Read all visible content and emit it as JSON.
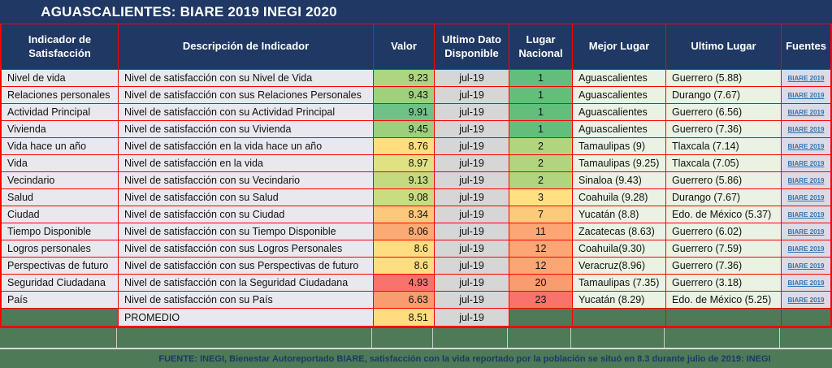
{
  "title": "AGUASCALIENTES: BIARE 2019 INEGI 2020",
  "colors": {
    "navy": "#1f3864",
    "border_red": "#fe0000",
    "dark_green": "#4e7a57",
    "row_bg": "#e9e8ee",
    "date_bg": "#d6d6d6",
    "place_bg": "#eaf2e3",
    "source_bg": "#dcdbe5",
    "link_blue": "#2e75b6"
  },
  "header": {
    "indicator": "Indicador de Satisfacción",
    "description": "Descripción de Indicador",
    "value": "Valor",
    "last_data": "Ultimo Dato Disponible",
    "national_rank": "Lugar Nacional",
    "best_place": "Mejor Lugar",
    "last_place": "Ultimo Lugar",
    "sources": "Fuentes"
  },
  "rows": [
    {
      "indicator": "Nivel de vida",
      "description": "Nivel de satisfacción con su Nivel de Vida",
      "value": "9.23",
      "value_color": "#aed580",
      "last_data": "jul-19",
      "rank": "1",
      "rank_color": "#63be7b",
      "best_place": "Aguascalientes",
      "last_place": "Guerrero (5.88)",
      "source": "BIARE 2019"
    },
    {
      "indicator": "Relaciones personales",
      "description": "Nivel de satisfacción con sus Relaciones Personales",
      "value": "9.43",
      "value_color": "#9fd07c",
      "last_data": "jul-19",
      "rank": "1",
      "rank_color": "#63be7b",
      "best_place": "Aguascalientes",
      "last_place": "Durango (7.67)",
      "source": "BIARE 2019"
    },
    {
      "indicator": "Actividad Principal",
      "description": "Nivel de satisfacción con su Actividad Principal",
      "value": "9.91",
      "value_color": "#6fc287",
      "last_data": "jul-19",
      "rank": "1",
      "rank_color": "#63be7b",
      "best_place": "Aguascalientes",
      "last_place": "Guerrero (6.56)",
      "source": "BIARE 2019"
    },
    {
      "indicator": "Vivienda",
      "description": "Nivel de satisfacción con su Vivienda",
      "value": "9.45",
      "value_color": "#9dcf7c",
      "last_data": "jul-19",
      "rank": "1",
      "rank_color": "#63be7b",
      "best_place": "Aguascalientes",
      "last_place": "Guerrero (7.36)",
      "source": "BIARE 2019"
    },
    {
      "indicator": "Vida hace un año",
      "description": "Nivel de satisfacción en la vida hace un año",
      "value": "8.76",
      "value_color": "#fede7f",
      "last_data": "jul-19",
      "rank": "2",
      "rank_color": "#b1d57e",
      "best_place": "Tamaulipas (9)",
      "last_place": "Tlaxcala (7.14)",
      "source": "BIARE 2019"
    },
    {
      "indicator": "Vida",
      "description": "Nivel de satisfacción en la vida",
      "value": "8.97",
      "value_color": "#e0e182",
      "last_data": "jul-19",
      "rank": "2",
      "rank_color": "#b1d57e",
      "best_place": "Tamaulipas (9.25)",
      "last_place": "Tlaxcala (7.05)",
      "source": "BIARE 2019"
    },
    {
      "indicator": "Vecindario",
      "description": "Nivel de satisfacción con su Vecindario",
      "value": "9.13",
      "value_color": "#c3da80",
      "last_data": "jul-19",
      "rank": "2",
      "rank_color": "#b1d57e",
      "best_place": "Sinaloa (9.43)",
      "last_place": "Guerrero (5.86)",
      "source": "BIARE 2019"
    },
    {
      "indicator": "Salud",
      "description": "Nivel de satisfacción con su Salud",
      "value": "9.08",
      "value_color": "#c9dc80",
      "last_data": "jul-19",
      "rank": "3",
      "rank_color": "#ffe182",
      "best_place": "Coahuila (9.28)",
      "last_place": "Durango (7.67)",
      "source": "BIARE 2019"
    },
    {
      "indicator": "Ciudad",
      "description": "Nivel de satisfacción con su Ciudad",
      "value": "8.34",
      "value_color": "#fec77b",
      "last_data": "jul-19",
      "rank": "7",
      "rank_color": "#fec97b",
      "best_place": "Yucatán (8.8)",
      "last_place": "Edo. de México (5.37)",
      "source": "BIARE 2019"
    },
    {
      "indicator": "Tiempo Disponible",
      "description": "Nivel de satisfacción con su Tiempo Disponible",
      "value": "8.06",
      "value_color": "#fcaa73",
      "last_data": "jul-19",
      "rank": "11",
      "rank_color": "#fba674",
      "best_place": "Zacatecas (8.63)",
      "last_place": "Guerrero (6.02)",
      "source": "BIARE 2019"
    },
    {
      "indicator": "Logros personales",
      "description": "Nivel de satisfacción con sus Logros Personales",
      "value": "8.6",
      "value_color": "#ffdd80",
      "last_data": "jul-19",
      "rank": "12",
      "rank_color": "#fba674",
      "best_place": "Coahuila(9.30)",
      "last_place": "Guerrero (7.59)",
      "source": "BIARE 2019"
    },
    {
      "indicator": "Perspectivas de futuro",
      "description": "Nivel de satisfacción con sus Perspectivas de futuro",
      "value": "8.6",
      "value_color": "#ffdd80",
      "last_data": "jul-19",
      "rank": "12",
      "rank_color": "#fba674",
      "best_place": "Veracruz(8.96)",
      "last_place": "Guerrero (7.36)",
      "source": "BIARE 2019"
    },
    {
      "indicator": "Seguridad Ciudadana",
      "description": "Nivel de satisfacción con la Seguridad Ciudadana",
      "value": "4.93",
      "value_color": "#f9726c",
      "last_data": "jul-19",
      "rank": "20",
      "rank_color": "#fb9b70",
      "best_place": "Tamaulipas (7.35)",
      "last_place": "Guerrero (3.18)",
      "source": "BIARE 2019"
    },
    {
      "indicator": "País",
      "description": "Nivel de satisfacción con su País",
      "value": "6.63",
      "value_color": "#fb9c6f",
      "last_data": "jul-19",
      "rank": "23",
      "rank_color": "#f9726c",
      "best_place": "Yucatán (8.29)",
      "last_place": "Edo. de México (5.25)",
      "source": "BIARE 2019"
    }
  ],
  "summary_row": {
    "description": "PROMEDIO",
    "value": "8.51",
    "value_color": "#ffdc7f",
    "last_data": "jul-19"
  },
  "footer": {
    "text": "FUENTE: INEGI, Bienestar Autoreportado BIARE, satisfacción con la vida reportado por la población se situó en 8.3 durante julio de 2019: INEGI"
  },
  "chart_data": {
    "type": "table",
    "title": "AGUASCALIENTES: BIARE 2019 INEGI 2020",
    "columns": [
      "Indicador de Satisfacción",
      "Descripción de Indicador",
      "Valor",
      "Ultimo Dato Disponible",
      "Lugar Nacional",
      "Mejor Lugar",
      "Ultimo Lugar",
      "Fuentes"
    ],
    "rows": [
      [
        "Nivel de vida",
        "Nivel de satisfacción con su Nivel de Vida",
        9.23,
        "jul-19",
        1,
        "Aguascalientes",
        "Guerrero (5.88)",
        "BIARE 2019"
      ],
      [
        "Relaciones personales",
        "Nivel de satisfacción con sus Relaciones Personales",
        9.43,
        "jul-19",
        1,
        "Aguascalientes",
        "Durango (7.67)",
        "BIARE 2019"
      ],
      [
        "Actividad Principal",
        "Nivel de satisfacción con su Actividad Principal",
        9.91,
        "jul-19",
        1,
        "Aguascalientes",
        "Guerrero (6.56)",
        "BIARE 2019"
      ],
      [
        "Vivienda",
        "Nivel de satisfacción con su Vivienda",
        9.45,
        "jul-19",
        1,
        "Aguascalientes",
        "Guerrero (7.36)",
        "BIARE 2019"
      ],
      [
        "Vida hace un año",
        "Nivel de satisfacción en la vida hace un año",
        8.76,
        "jul-19",
        2,
        "Tamaulipas (9)",
        "Tlaxcala (7.14)",
        "BIARE 2019"
      ],
      [
        "Vida",
        "Nivel de satisfacción en la vida",
        8.97,
        "jul-19",
        2,
        "Tamaulipas (9.25)",
        "Tlaxcala (7.05)",
        "BIARE 2019"
      ],
      [
        "Vecindario",
        "Nivel de satisfacción con su Vecindario",
        9.13,
        "jul-19",
        2,
        "Sinaloa (9.43)",
        "Guerrero (5.86)",
        "BIARE 2019"
      ],
      [
        "Salud",
        "Nivel de satisfacción con su Salud",
        9.08,
        "jul-19",
        3,
        "Coahuila (9.28)",
        "Durango (7.67)",
        "BIARE 2019"
      ],
      [
        "Ciudad",
        "Nivel de satisfacción con su Ciudad",
        8.34,
        "jul-19",
        7,
        "Yucatán (8.8)",
        "Edo. de México (5.37)",
        "BIARE 2019"
      ],
      [
        "Tiempo Disponible",
        "Nivel de satisfacción con su Tiempo Disponible",
        8.06,
        "jul-19",
        11,
        "Zacatecas (8.63)",
        "Guerrero (6.02)",
        "BIARE 2019"
      ],
      [
        "Logros personales",
        "Nivel de satisfacción con sus Logros Personales",
        8.6,
        "jul-19",
        12,
        "Coahuila(9.30)",
        "Guerrero (7.59)",
        "BIARE 2019"
      ],
      [
        "Perspectivas de futuro",
        "Nivel de satisfacción con sus Perspectivas de futuro",
        8.6,
        "jul-19",
        12,
        "Veracruz(8.96)",
        "Guerrero (7.36)",
        "BIARE 2019"
      ],
      [
        "Seguridad Ciudadana",
        "Nivel de satisfacción con la Seguridad Ciudadana",
        4.93,
        "jul-19",
        20,
        "Tamaulipas (7.35)",
        "Guerrero (3.18)",
        "BIARE 2019"
      ],
      [
        "País",
        "Nivel de satisfacción con su País",
        6.63,
        "jul-19",
        23,
        "Yucatán (8.29)",
        "Edo. de México (5.25)",
        "BIARE 2019"
      ],
      [
        "",
        "PROMEDIO",
        8.51,
        "jul-19",
        "",
        "",
        "",
        ""
      ]
    ]
  }
}
